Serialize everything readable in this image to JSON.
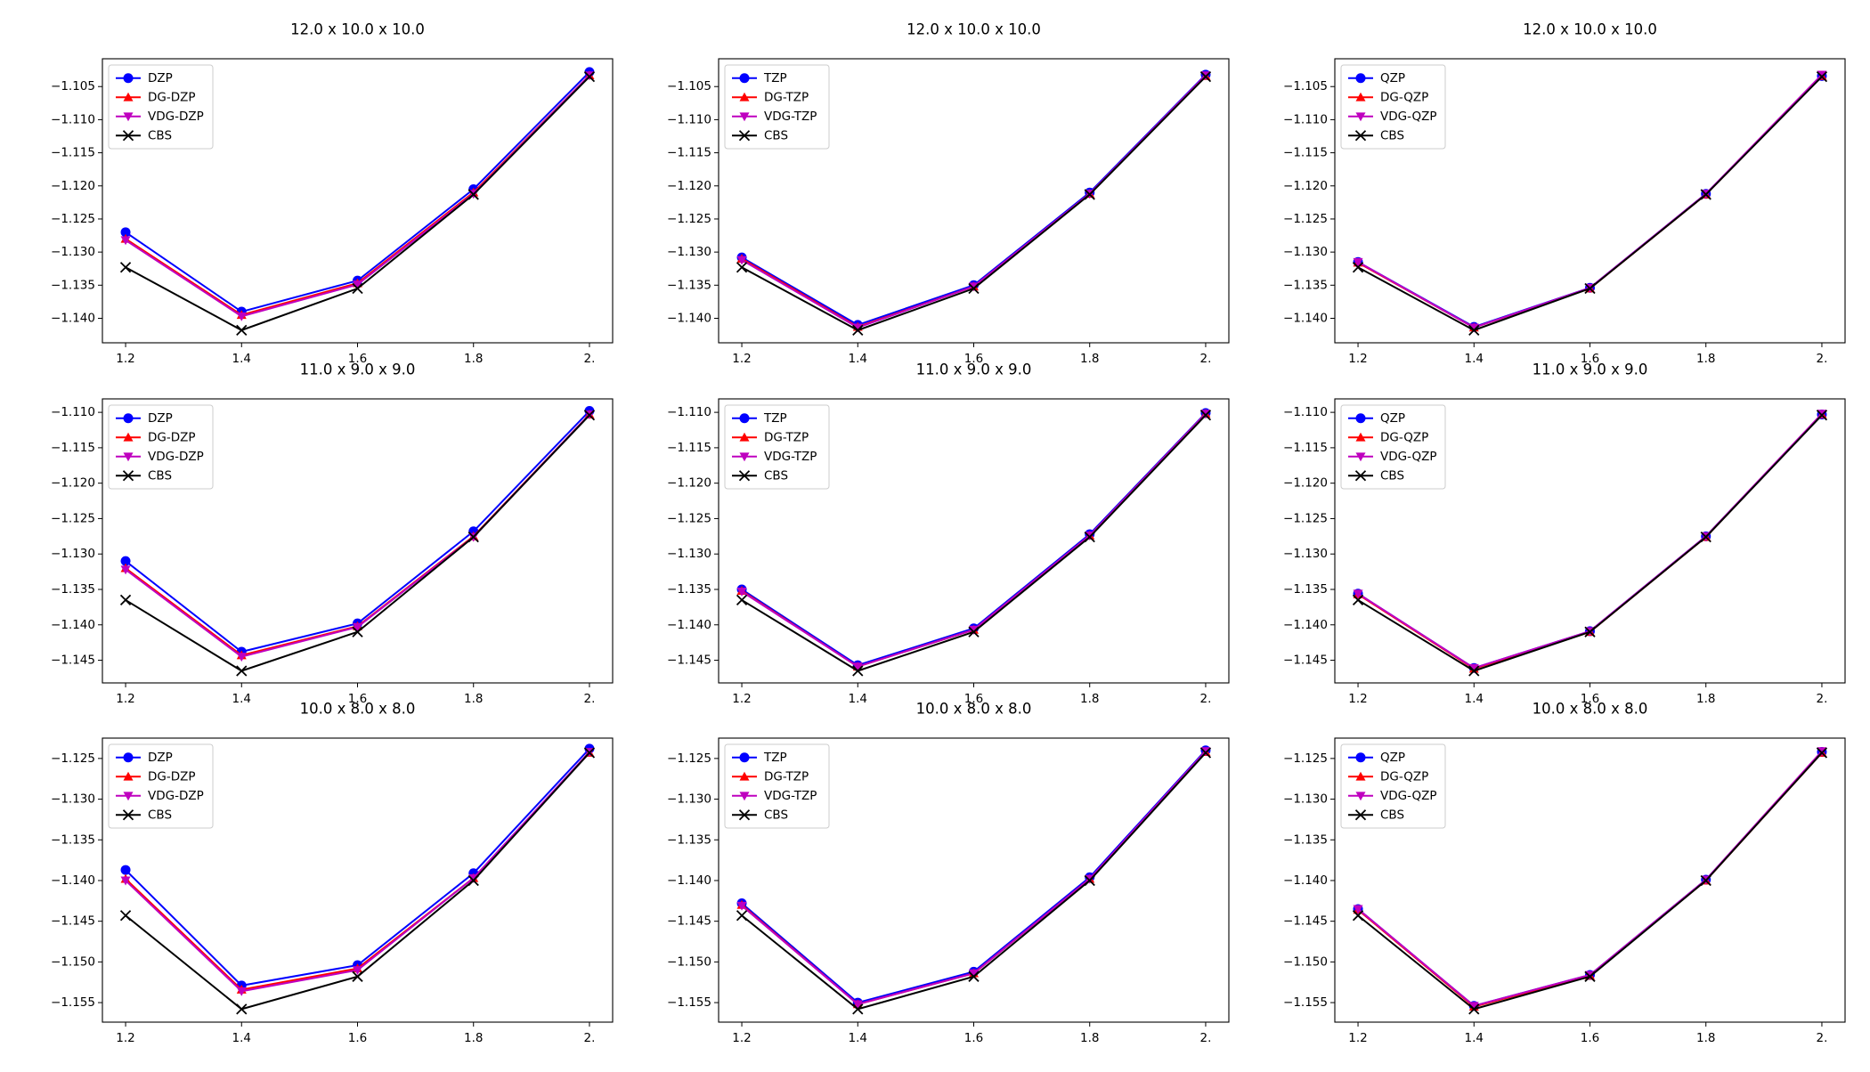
{
  "chart_data": [
    {
      "type": "line",
      "title": "12.0 x 10.0 x 10.0",
      "x": [
        1.2,
        1.4,
        1.6,
        1.8,
        2.0
      ],
      "xlim": [
        1.16,
        2.04
      ],
      "xticks": [
        1.2,
        1.4,
        1.6,
        1.8,
        {
          "value": 2.0,
          "label": "2."
        }
      ],
      "ylim": [
        -1.1437,
        -1.1008
      ],
      "yticks": [
        {
          "value": -1.105,
          "label": "−1.105"
        },
        {
          "value": -1.11,
          "label": "−1.110"
        },
        {
          "value": -1.115,
          "label": "−1.115"
        },
        {
          "value": -1.12,
          "label": "−1.120"
        },
        {
          "value": -1.125,
          "label": "−1.125"
        },
        {
          "value": -1.13,
          "label": "−1.130"
        },
        {
          "value": -1.135,
          "label": "−1.135"
        },
        {
          "value": -1.14,
          "label": "−1.140"
        }
      ],
      "grid": false,
      "legend": "upper left",
      "series": [
        {
          "name": "DZP",
          "color": "#0000ff",
          "marker": "o",
          "values": [
            -1.127,
            -1.139,
            -1.1343,
            -1.1205,
            -1.1028
          ]
        },
        {
          "name": "DG-DZP",
          "color": "#ff0000",
          "marker": "^",
          "values": [
            -1.128,
            -1.1395,
            -1.1347,
            -1.121,
            -1.1033
          ]
        },
        {
          "name": "VDG-DZP",
          "color": "#bf00bf",
          "marker": "v",
          "values": [
            -1.1282,
            -1.1397,
            -1.1349,
            -1.1212,
            -1.1033
          ]
        },
        {
          "name": "CBS",
          "color": "#000000",
          "marker": "x",
          "values": [
            -1.1323,
            -1.1418,
            -1.1355,
            -1.1213,
            -1.1035
          ]
        }
      ]
    },
    {
      "type": "line",
      "title": "12.0 x 10.0 x 10.0",
      "x": [
        1.2,
        1.4,
        1.6,
        1.8,
        2.0
      ],
      "xlim": [
        1.16,
        2.04
      ],
      "xticks": [
        1.2,
        1.4,
        1.6,
        1.8,
        {
          "value": 2.0,
          "label": "2."
        }
      ],
      "ylim": [
        -1.1437,
        -1.1008
      ],
      "yticks": [
        {
          "value": -1.105,
          "label": "−1.105"
        },
        {
          "value": -1.11,
          "label": "−1.110"
        },
        {
          "value": -1.115,
          "label": "−1.115"
        },
        {
          "value": -1.12,
          "label": "−1.120"
        },
        {
          "value": -1.125,
          "label": "−1.125"
        },
        {
          "value": -1.13,
          "label": "−1.130"
        },
        {
          "value": -1.135,
          "label": "−1.135"
        },
        {
          "value": -1.14,
          "label": "−1.140"
        }
      ],
      "grid": false,
      "legend": "upper left",
      "series": [
        {
          "name": "TZP",
          "color": "#0000ff",
          "marker": "o",
          "values": [
            -1.1308,
            -1.141,
            -1.135,
            -1.121,
            -1.1032
          ]
        },
        {
          "name": "DG-TZP",
          "color": "#ff0000",
          "marker": "^",
          "values": [
            -1.131,
            -1.1413,
            -1.1352,
            -1.1212,
            -1.1034
          ]
        },
        {
          "name": "VDG-TZP",
          "color": "#bf00bf",
          "marker": "v",
          "values": [
            -1.1312,
            -1.1414,
            -1.1352,
            -1.1212,
            -1.1033
          ]
        },
        {
          "name": "CBS",
          "color": "#000000",
          "marker": "x",
          "values": [
            -1.1323,
            -1.1418,
            -1.1355,
            -1.1213,
            -1.1035
          ]
        }
      ]
    },
    {
      "type": "line",
      "title": "12.0 x 10.0 x 10.0",
      "x": [
        1.2,
        1.4,
        1.6,
        1.8,
        2.0
      ],
      "xlim": [
        1.16,
        2.04
      ],
      "xticks": [
        1.2,
        1.4,
        1.6,
        1.8,
        {
          "value": 2.0,
          "label": "2."
        }
      ],
      "ylim": [
        -1.1437,
        -1.1008
      ],
      "yticks": [
        {
          "value": -1.105,
          "label": "−1.105"
        },
        {
          "value": -1.11,
          "label": "−1.110"
        },
        {
          "value": -1.115,
          "label": "−1.115"
        },
        {
          "value": -1.12,
          "label": "−1.120"
        },
        {
          "value": -1.125,
          "label": "−1.125"
        },
        {
          "value": -1.13,
          "label": "−1.130"
        },
        {
          "value": -1.135,
          "label": "−1.135"
        },
        {
          "value": -1.14,
          "label": "−1.140"
        }
      ],
      "grid": false,
      "legend": "upper left",
      "series": [
        {
          "name": "QZP",
          "color": "#0000ff",
          "marker": "o",
          "values": [
            -1.1315,
            -1.1413,
            -1.1354,
            -1.1212,
            -1.1034
          ]
        },
        {
          "name": "DG-QZP",
          "color": "#ff0000",
          "marker": "^",
          "values": [
            -1.1316,
            -1.1414,
            -1.1355,
            -1.1213,
            -1.1034
          ]
        },
        {
          "name": "VDG-QZP",
          "color": "#bf00bf",
          "marker": "v",
          "values": [
            -1.1315,
            -1.1414,
            -1.1354,
            -1.1212,
            -1.1032
          ]
        },
        {
          "name": "CBS",
          "color": "#000000",
          "marker": "x",
          "values": [
            -1.1323,
            -1.1418,
            -1.1355,
            -1.1213,
            -1.1035
          ]
        }
      ]
    },
    {
      "type": "line",
      "title": "11.0 x 9.0 x 9.0",
      "x": [
        1.2,
        1.4,
        1.6,
        1.8,
        2.0
      ],
      "xlim": [
        1.16,
        2.04
      ],
      "xticks": [
        1.2,
        1.4,
        1.6,
        1.8,
        {
          "value": 2.0,
          "label": "2."
        }
      ],
      "ylim": [
        -1.1482,
        -1.1081
      ],
      "yticks": [
        {
          "value": -1.11,
          "label": "−1.110"
        },
        {
          "value": -1.115,
          "label": "−1.115"
        },
        {
          "value": -1.12,
          "label": "−1.120"
        },
        {
          "value": -1.125,
          "label": "−1.125"
        },
        {
          "value": -1.13,
          "label": "−1.130"
        },
        {
          "value": -1.135,
          "label": "−1.135"
        },
        {
          "value": -1.14,
          "label": "−1.140"
        },
        {
          "value": -1.145,
          "label": "−1.145"
        }
      ],
      "grid": false,
      "legend": "upper left",
      "series": [
        {
          "name": "DZP",
          "color": "#0000ff",
          "marker": "o",
          "values": [
            -1.131,
            -1.1438,
            -1.1398,
            -1.1268,
            -1.1098
          ]
        },
        {
          "name": "DG-DZP",
          "color": "#ff0000",
          "marker": "^",
          "values": [
            -1.132,
            -1.1443,
            -1.1402,
            -1.1275,
            -1.1103
          ]
        },
        {
          "name": "VDG-DZP",
          "color": "#bf00bf",
          "marker": "v",
          "values": [
            -1.1322,
            -1.1445,
            -1.1403,
            -1.1276,
            -1.1103
          ]
        },
        {
          "name": "CBS",
          "color": "#000000",
          "marker": "x",
          "values": [
            -1.1365,
            -1.1465,
            -1.141,
            -1.1276,
            -1.1104
          ]
        }
      ]
    },
    {
      "type": "line",
      "title": "11.0 x 9.0 x 9.0",
      "x": [
        1.2,
        1.4,
        1.6,
        1.8,
        2.0
      ],
      "xlim": [
        1.16,
        2.04
      ],
      "xticks": [
        1.2,
        1.4,
        1.6,
        1.8,
        {
          "value": 2.0,
          "label": "2."
        }
      ],
      "ylim": [
        -1.1482,
        -1.1081
      ],
      "yticks": [
        {
          "value": -1.11,
          "label": "−1.110"
        },
        {
          "value": -1.115,
          "label": "−1.115"
        },
        {
          "value": -1.12,
          "label": "−1.120"
        },
        {
          "value": -1.125,
          "label": "−1.125"
        },
        {
          "value": -1.13,
          "label": "−1.130"
        },
        {
          "value": -1.135,
          "label": "−1.135"
        },
        {
          "value": -1.14,
          "label": "−1.140"
        },
        {
          "value": -1.145,
          "label": "−1.145"
        }
      ],
      "grid": false,
      "legend": "upper left",
      "series": [
        {
          "name": "TZP",
          "color": "#0000ff",
          "marker": "o",
          "values": [
            -1.135,
            -1.1457,
            -1.1405,
            -1.1272,
            -1.1101
          ]
        },
        {
          "name": "DG-TZP",
          "color": "#ff0000",
          "marker": "^",
          "values": [
            -1.1352,
            -1.1459,
            -1.1407,
            -1.1274,
            -1.1102
          ]
        },
        {
          "name": "VDG-TZP",
          "color": "#bf00bf",
          "marker": "v",
          "values": [
            -1.1353,
            -1.1459,
            -1.1407,
            -1.1274,
            -1.1102
          ]
        },
        {
          "name": "CBS",
          "color": "#000000",
          "marker": "x",
          "values": [
            -1.1365,
            -1.1465,
            -1.141,
            -1.1276,
            -1.1104
          ]
        }
      ]
    },
    {
      "type": "line",
      "title": "11.0 x 9.0 x 9.0",
      "x": [
        1.2,
        1.4,
        1.6,
        1.8,
        2.0
      ],
      "xlim": [
        1.16,
        2.04
      ],
      "xticks": [
        1.2,
        1.4,
        1.6,
        1.8,
        {
          "value": 2.0,
          "label": "2."
        }
      ],
      "ylim": [
        -1.1482,
        -1.1081
      ],
      "yticks": [
        {
          "value": -1.11,
          "label": "−1.110"
        },
        {
          "value": -1.115,
          "label": "−1.115"
        },
        {
          "value": -1.12,
          "label": "−1.120"
        },
        {
          "value": -1.125,
          "label": "−1.125"
        },
        {
          "value": -1.13,
          "label": "−1.130"
        },
        {
          "value": -1.135,
          "label": "−1.135"
        },
        {
          "value": -1.14,
          "label": "−1.140"
        },
        {
          "value": -1.145,
          "label": "−1.145"
        }
      ],
      "grid": false,
      "legend": "upper left",
      "series": [
        {
          "name": "QZP",
          "color": "#0000ff",
          "marker": "o",
          "values": [
            -1.1356,
            -1.1461,
            -1.1409,
            -1.1275,
            -1.1103
          ]
        },
        {
          "name": "DG-QZP",
          "color": "#ff0000",
          "marker": "^",
          "values": [
            -1.1357,
            -1.1462,
            -1.141,
            -1.1276,
            -1.1103
          ]
        },
        {
          "name": "VDG-QZP",
          "color": "#bf00bf",
          "marker": "v",
          "values": [
            -1.1356,
            -1.1461,
            -1.1409,
            -1.1275,
            -1.1102
          ]
        },
        {
          "name": "CBS",
          "color": "#000000",
          "marker": "x",
          "values": [
            -1.1365,
            -1.1465,
            -1.141,
            -1.1276,
            -1.1104
          ]
        }
      ]
    },
    {
      "type": "line",
      "title": "10.0 x 8.0 x 8.0",
      "x": [
        1.2,
        1.4,
        1.6,
        1.8,
        2.0
      ],
      "xlim": [
        1.16,
        2.04
      ],
      "xticks": [
        1.2,
        1.4,
        1.6,
        1.8,
        {
          "value": 2.0,
          "label": "2."
        }
      ],
      "ylim": [
        -1.1574,
        -1.1225
      ],
      "yticks": [
        {
          "value": -1.125,
          "label": "−1.125"
        },
        {
          "value": -1.13,
          "label": "−1.130"
        },
        {
          "value": -1.135,
          "label": "−1.135"
        },
        {
          "value": -1.14,
          "label": "−1.140"
        },
        {
          "value": -1.145,
          "label": "−1.145"
        },
        {
          "value": -1.15,
          "label": "−1.150"
        },
        {
          "value": -1.155,
          "label": "−1.155"
        }
      ],
      "grid": false,
      "legend": "upper left",
      "series": [
        {
          "name": "DZP",
          "color": "#0000ff",
          "marker": "o",
          "values": [
            -1.1387,
            -1.1529,
            -1.1504,
            -1.1391,
            -1.1238
          ]
        },
        {
          "name": "DG-DZP",
          "color": "#ff0000",
          "marker": "^",
          "values": [
            -1.1398,
            -1.1534,
            -1.1508,
            -1.1397,
            -1.1243
          ]
        },
        {
          "name": "VDG-DZP",
          "color": "#bf00bf",
          "marker": "v",
          "values": [
            -1.14,
            -1.1536,
            -1.151,
            -1.1397,
            -1.1242
          ]
        },
        {
          "name": "CBS",
          "color": "#000000",
          "marker": "x",
          "values": [
            -1.1443,
            -1.1558,
            -1.1518,
            -1.14,
            -1.1243
          ]
        }
      ]
    },
    {
      "type": "line",
      "title": "10.0 x 8.0 x 8.0",
      "x": [
        1.2,
        1.4,
        1.6,
        1.8,
        2.0
      ],
      "xlim": [
        1.16,
        2.04
      ],
      "xticks": [
        1.2,
        1.4,
        1.6,
        1.8,
        {
          "value": 2.0,
          "label": "2."
        }
      ],
      "ylim": [
        -1.1574,
        -1.1225
      ],
      "yticks": [
        {
          "value": -1.125,
          "label": "−1.125"
        },
        {
          "value": -1.13,
          "label": "−1.130"
        },
        {
          "value": -1.135,
          "label": "−1.135"
        },
        {
          "value": -1.14,
          "label": "−1.140"
        },
        {
          "value": -1.145,
          "label": "−1.145"
        },
        {
          "value": -1.15,
          "label": "−1.150"
        },
        {
          "value": -1.155,
          "label": "−1.155"
        }
      ],
      "grid": false,
      "legend": "upper left",
      "series": [
        {
          "name": "TZP",
          "color": "#0000ff",
          "marker": "o",
          "values": [
            -1.1428,
            -1.155,
            -1.1512,
            -1.1396,
            -1.124
          ]
        },
        {
          "name": "DG-TZP",
          "color": "#ff0000",
          "marker": "^",
          "values": [
            -1.143,
            -1.1552,
            -1.1514,
            -1.1398,
            -1.1242
          ]
        },
        {
          "name": "VDG-TZP",
          "color": "#bf00bf",
          "marker": "v",
          "values": [
            -1.1431,
            -1.1552,
            -1.1514,
            -1.1398,
            -1.1241
          ]
        },
        {
          "name": "CBS",
          "color": "#000000",
          "marker": "x",
          "values": [
            -1.1443,
            -1.1558,
            -1.1518,
            -1.14,
            -1.1243
          ]
        }
      ]
    },
    {
      "type": "line",
      "title": "10.0 x 8.0 x 8.0",
      "x": [
        1.2,
        1.4,
        1.6,
        1.8,
        2.0
      ],
      "xlim": [
        1.16,
        2.04
      ],
      "xticks": [
        1.2,
        1.4,
        1.6,
        1.8,
        {
          "value": 2.0,
          "label": "2."
        }
      ],
      "ylim": [
        -1.1574,
        -1.1225
      ],
      "yticks": [
        {
          "value": -1.125,
          "label": "−1.125"
        },
        {
          "value": -1.13,
          "label": "−1.130"
        },
        {
          "value": -1.135,
          "label": "−1.135"
        },
        {
          "value": -1.14,
          "label": "−1.140"
        },
        {
          "value": -1.145,
          "label": "−1.145"
        },
        {
          "value": -1.15,
          "label": "−1.150"
        },
        {
          "value": -1.155,
          "label": "−1.155"
        }
      ],
      "grid": false,
      "legend": "upper left",
      "series": [
        {
          "name": "QZP",
          "color": "#0000ff",
          "marker": "o",
          "values": [
            -1.1435,
            -1.1554,
            -1.1516,
            -1.1399,
            -1.1242
          ]
        },
        {
          "name": "DG-QZP",
          "color": "#ff0000",
          "marker": "^",
          "values": [
            -1.1436,
            -1.1555,
            -1.1517,
            -1.14,
            -1.1243
          ]
        },
        {
          "name": "VDG-QZP",
          "color": "#bf00bf",
          "marker": "v",
          "values": [
            -1.1435,
            -1.1554,
            -1.1516,
            -1.1399,
            -1.1241
          ]
        },
        {
          "name": "CBS",
          "color": "#000000",
          "marker": "x",
          "values": [
            -1.1443,
            -1.1558,
            -1.1518,
            -1.14,
            -1.1243
          ]
        }
      ]
    }
  ]
}
